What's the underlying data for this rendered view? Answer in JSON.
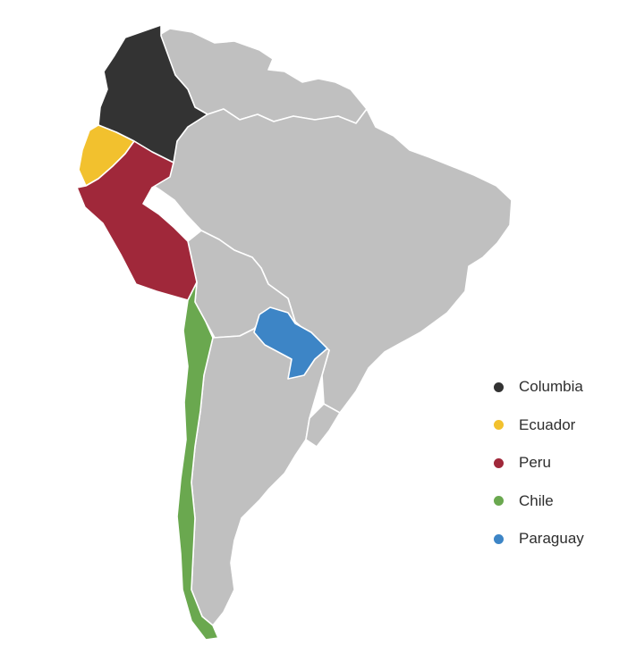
{
  "map": {
    "base_color": "#c0c0c0",
    "border_color": "#ffffff"
  },
  "legend": {
    "items": [
      {
        "label": "Columbia",
        "color": "#333333"
      },
      {
        "label": "Ecuador",
        "color": "#f2c12e"
      },
      {
        "label": "Peru",
        "color": "#a0283a"
      },
      {
        "label": "Chile",
        "color": "#6aa84f"
      },
      {
        "label": "Paraguay",
        "color": "#3d85c6"
      }
    ]
  }
}
